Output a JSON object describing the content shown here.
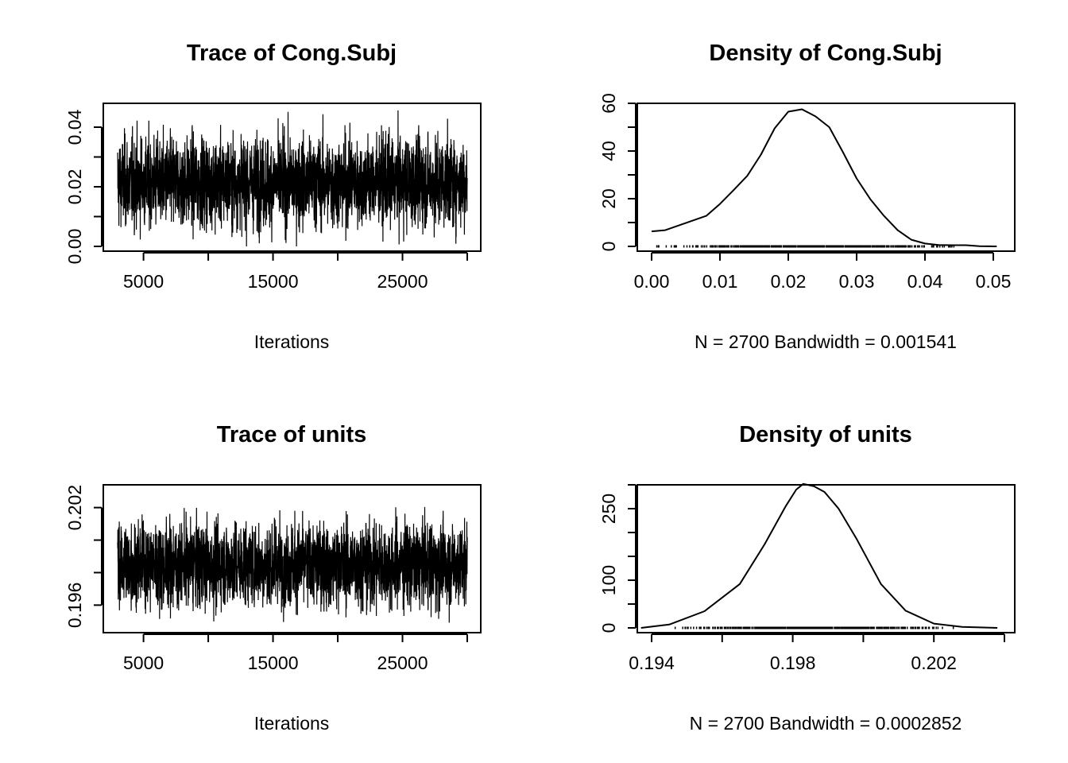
{
  "chart_data": [
    {
      "type": "line",
      "title": "Trace of Cong.Subj",
      "xlabel": "Iterations",
      "ylabel": "",
      "xlim": [
        3000,
        30000
      ],
      "ylim": [
        0.0,
        0.048
      ],
      "x_ticks": [
        5000,
        10000,
        15000,
        20000,
        25000,
        30000
      ],
      "x_tick_labels": [
        "5000",
        "",
        "15000",
        "",
        "25000",
        ""
      ],
      "y_ticks": [
        0.0,
        0.01,
        0.02,
        0.03,
        0.04
      ],
      "y_tick_labels": [
        "0.00",
        "",
        "0.02",
        "",
        "0.04"
      ],
      "n_samples": 2700,
      "mean": 0.0215,
      "sd": 0.0075,
      "max_observed": 0.047,
      "grid": false,
      "legend": "none",
      "color": "#000000"
    },
    {
      "type": "area",
      "title": "Density of Cong.Subj",
      "xlabel": "N = 2700   Bandwidth = 0.001541",
      "ylabel": "",
      "xlim": [
        0.0,
        0.05
      ],
      "ylim": [
        0,
        60
      ],
      "x_ticks": [
        0.0,
        0.01,
        0.02,
        0.03,
        0.04,
        0.05
      ],
      "x_tick_labels": [
        "0.00",
        "0.01",
        "0.02",
        "0.03",
        "0.04",
        "0.05"
      ],
      "y_ticks": [
        0,
        10,
        20,
        30,
        40,
        50,
        60
      ],
      "y_tick_labels": [
        "0",
        "",
        "20",
        "",
        "40",
        "",
        "60"
      ],
      "x": [
        0.0,
        0.002,
        0.004,
        0.006,
        0.008,
        0.01,
        0.012,
        0.014,
        0.016,
        0.018,
        0.02,
        0.022,
        0.024,
        0.026,
        0.028,
        0.03,
        0.032,
        0.034,
        0.036,
        0.038,
        0.04,
        0.042,
        0.044,
        0.046,
        0.048,
        0.0505
      ],
      "y": [
        6.3,
        6.8,
        8.8,
        10.8,
        12.8,
        17.8,
        23.6,
        29.6,
        38.5,
        49.5,
        56.5,
        57.5,
        54.5,
        50.0,
        39.5,
        28.5,
        19.8,
        12.8,
        6.8,
        2.8,
        1.2,
        0.6,
        0.5,
        0.5,
        0.1,
        0.0
      ],
      "rug_range": [
        0.0,
        0.0465
      ],
      "grid": false,
      "legend": "none",
      "color": "#000000"
    },
    {
      "type": "line",
      "title": "Trace of units",
      "xlabel": "Iterations",
      "ylabel": "",
      "xlim": [
        3000,
        30000
      ],
      "ylim": [
        0.1946,
        0.2034
      ],
      "x_ticks": [
        5000,
        10000,
        15000,
        20000,
        25000,
        30000
      ],
      "x_tick_labels": [
        "5000",
        "",
        "15000",
        "",
        "25000",
        ""
      ],
      "y_ticks": [
        0.196,
        0.198,
        0.2,
        0.202
      ],
      "y_tick_labels": [
        "0.196",
        "",
        "",
        "0.202"
      ],
      "n_samples": 2700,
      "mean": 0.1985,
      "sd": 0.0013,
      "max_observed": 0.2031,
      "min_observed": 0.1948,
      "grid": false,
      "legend": "none",
      "color": "#000000"
    },
    {
      "type": "area",
      "title": "Density of units",
      "xlabel": "N = 2700   Bandwidth = 0.0002852",
      "ylabel": "",
      "xlim": [
        0.1936,
        0.2039
      ],
      "ylim": [
        0,
        300
      ],
      "x_ticks": [
        0.194,
        0.196,
        0.198,
        0.2,
        0.202,
        0.204
      ],
      "x_tick_labels": [
        "0.194",
        "",
        "0.198",
        "",
        "0.202",
        ""
      ],
      "y_ticks": [
        0,
        50,
        100,
        150,
        200,
        250,
        300
      ],
      "y_tick_labels": [
        "0",
        "",
        "100",
        "",
        "",
        "250",
        ""
      ],
      "x": [
        0.1937,
        0.1945,
        0.1955,
        0.1965,
        0.1972,
        0.1978,
        0.1981,
        0.1983,
        0.1986,
        0.1989,
        0.1993,
        0.1998,
        0.2005,
        0.2012,
        0.202,
        0.2028,
        0.2038
      ],
      "y": [
        0,
        7,
        35,
        92,
        175,
        255,
        290,
        302,
        297,
        285,
        250,
        188,
        92,
        36,
        9,
        2,
        0
      ],
      "rug_range": [
        0.1946,
        0.2028
      ],
      "grid": false,
      "legend": "none",
      "color": "#000000"
    }
  ]
}
